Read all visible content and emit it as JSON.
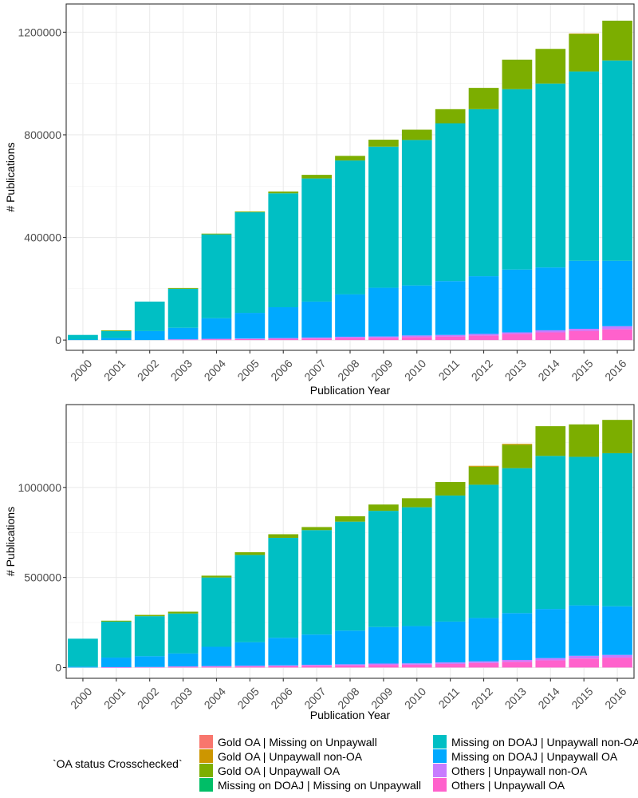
{
  "legend": {
    "title": "`OA status Crosschecked`",
    "items": [
      {
        "label": "Gold OA | Missing on Unpaywall",
        "color": "#F8766D"
      },
      {
        "label": "Gold OA | Unpaywall non-OA",
        "color": "#CD9600"
      },
      {
        "label": "Gold OA | Unpaywall OA",
        "color": "#7CAE00"
      },
      {
        "label": "Missing on DOAJ | Missing on Unpaywall",
        "color": "#00BE67"
      },
      {
        "label": "Missing on DOAJ | Unpaywall non-OA",
        "color": "#00BFC4"
      },
      {
        "label": "Missing on DOAJ | Unpaywall OA",
        "color": "#00A9FF"
      },
      {
        "label": "Others | Unpaywall non-OA",
        "color": "#C77CFF"
      },
      {
        "label": "Others | Unpaywall OA",
        "color": "#FF61CC"
      }
    ]
  },
  "chart_data": [
    {
      "type": "bar",
      "stacked": true,
      "xlabel": "Publication Year",
      "ylabel": "# Publications",
      "ylim": [
        -40000,
        1310000
      ],
      "yticks": [
        0,
        400000,
        800000,
        1200000
      ],
      "grid": true,
      "categories": [
        "2000",
        "2001",
        "2002",
        "2003",
        "2004",
        "2005",
        "2006",
        "2007",
        "2008",
        "2009",
        "2010",
        "2011",
        "2012",
        "2013",
        "2014",
        "2015",
        "2016"
      ],
      "series": [
        {
          "name": "Others | Unpaywall OA",
          "values": [
            0,
            0,
            0,
            2000,
            3000,
            4000,
            5000,
            6000,
            8000,
            9000,
            12000,
            14000,
            18000,
            24000,
            30000,
            36000,
            42000
          ]
        },
        {
          "name": "Others | Unpaywall non-OA",
          "values": [
            0,
            0,
            0,
            1000,
            2000,
            2000,
            3000,
            4000,
            5000,
            5000,
            6000,
            6000,
            6000,
            6000,
            8000,
            8000,
            12000
          ]
        },
        {
          "name": "Missing on DOAJ | Unpaywall OA",
          "values": [
            2000,
            8000,
            35000,
            45000,
            80000,
            100000,
            120000,
            140000,
            165000,
            190000,
            195000,
            210000,
            225000,
            245000,
            245000,
            265000,
            255000
          ]
        },
        {
          "name": "Missing on DOAJ | Missing on Unpaywall",
          "values": [
            0,
            0,
            0,
            0,
            0,
            0,
            0,
            0,
            0,
            0,
            0,
            0,
            0,
            0,
            0,
            0,
            0
          ]
        },
        {
          "name": "Missing on DOAJ | Unpaywall non-OA",
          "values": [
            18000,
            27000,
            115000,
            152000,
            327000,
            392000,
            444000,
            480000,
            522000,
            550000,
            567000,
            615000,
            651000,
            703000,
            717000,
            738000,
            781000
          ]
        },
        {
          "name": "Gold OA | Unpaywall OA",
          "values": [
            0,
            3000,
            0,
            3000,
            3000,
            3000,
            7000,
            14000,
            18000,
            27000,
            40000,
            55000,
            83000,
            115000,
            135000,
            146000,
            155000
          ]
        },
        {
          "name": "Gold OA | Unpaywall non-OA",
          "values": [
            0,
            0,
            0,
            0,
            0,
            0,
            0,
            0,
            0,
            0,
            0,
            0,
            0,
            0,
            0,
            2000,
            0
          ]
        },
        {
          "name": "Gold OA | Missing on Unpaywall",
          "values": [
            0,
            0,
            0,
            0,
            0,
            0,
            0,
            0,
            0,
            0,
            0,
            0,
            0,
            0,
            0,
            0,
            0
          ]
        }
      ]
    },
    {
      "type": "bar",
      "stacked": true,
      "xlabel": "Publication Year",
      "ylabel": "# Publications",
      "ylim": [
        -60000,
        1460000
      ],
      "yticks": [
        0,
        500000,
        1000000
      ],
      "grid": true,
      "categories": [
        "2000",
        "2001",
        "2002",
        "2003",
        "2004",
        "2005",
        "2006",
        "2007",
        "2008",
        "2009",
        "2010",
        "2011",
        "2012",
        "2013",
        "2014",
        "2015",
        "2016"
      ],
      "series": [
        {
          "name": "Others | Unpaywall OA",
          "values": [
            0,
            1000,
            2000,
            4000,
            5000,
            6000,
            8000,
            10000,
            12000,
            15000,
            16000,
            20000,
            25000,
            32000,
            40000,
            50000,
            55000
          ]
        },
        {
          "name": "Others | Unpaywall non-OA",
          "values": [
            0,
            1000,
            1000,
            2000,
            3000,
            4000,
            4000,
            5000,
            6000,
            7000,
            7000,
            8000,
            9000,
            10000,
            12000,
            15000,
            15000
          ]
        },
        {
          "name": "Missing on DOAJ | Unpaywall OA",
          "values": [
            5000,
            53000,
            60000,
            72000,
            107000,
            130000,
            153000,
            168000,
            187000,
            203000,
            207000,
            227000,
            241000,
            260000,
            273000,
            280000,
            270000
          ]
        },
        {
          "name": "Missing on DOAJ | Missing on Unpaywall",
          "values": [
            0,
            0,
            0,
            0,
            0,
            0,
            0,
            0,
            0,
            0,
            0,
            0,
            0,
            0,
            0,
            0,
            0
          ]
        },
        {
          "name": "Missing on DOAJ | Unpaywall non-OA",
          "values": [
            155000,
            200000,
            222000,
            222000,
            385000,
            485000,
            555000,
            580000,
            605000,
            645000,
            660000,
            700000,
            740000,
            805000,
            850000,
            825000,
            850000
          ]
        },
        {
          "name": "Gold OA | Unpaywall OA",
          "values": [
            0,
            5000,
            7000,
            10000,
            10000,
            15000,
            20000,
            17000,
            30000,
            35000,
            50000,
            75000,
            100000,
            130000,
            165000,
            180000,
            185000
          ]
        },
        {
          "name": "Gold OA | Unpaywall non-OA",
          "values": [
            0,
            0,
            0,
            0,
            0,
            0,
            0,
            0,
            0,
            0,
            0,
            0,
            5000,
            5000,
            0,
            0,
            0
          ]
        },
        {
          "name": "Gold OA | Missing on Unpaywall",
          "values": [
            0,
            0,
            0,
            0,
            0,
            0,
            0,
            0,
            0,
            0,
            0,
            0,
            0,
            0,
            0,
            0,
            0
          ]
        }
      ]
    }
  ]
}
